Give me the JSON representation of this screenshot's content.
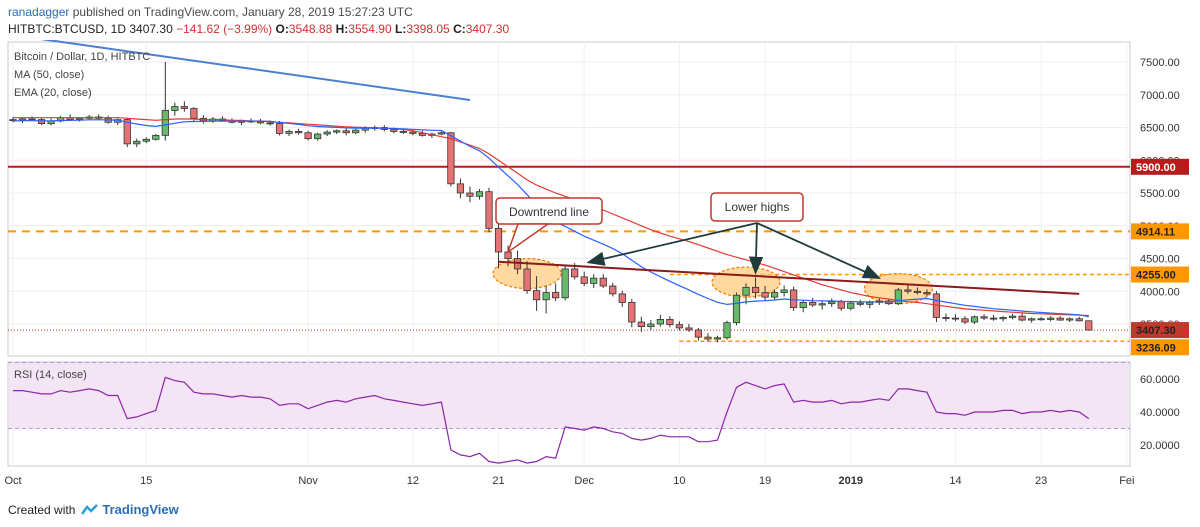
{
  "header": {
    "author": "ranadagger",
    "published_text": "published on TradingView.com, January 28, 2019 15:27:23 UTC",
    "symbol": "HITBTC:BTCUSD, 1D",
    "last_price": "3407.30",
    "change": "−141.62 (−3.99%)",
    "open_label": "O:",
    "open": "3548.88",
    "high_label": "H:",
    "high": "3554.90",
    "low_label": "L:",
    "low": "3398.05",
    "close_label": "C:",
    "close": "3407.30"
  },
  "legend": {
    "title": "Bitcoin / Dollar, 1D, HITBTC",
    "ma": "MA (50, close)",
    "ema": "EMA (20, close)",
    "rsi": "RSI (14, close)"
  },
  "footer": {
    "created_with": "Created with",
    "brand": "TradingView"
  },
  "colors": {
    "up": "#3a8e3a",
    "down": "#c0392b",
    "ma": "#e53935",
    "ema": "#2962ff",
    "level": "#b71c1c",
    "dashed": "#ff9800",
    "rsi": "#8e24aa",
    "rsi_band": "#f3e5f5"
  },
  "chart_data": {
    "type": "candlestick",
    "x_ticks": [
      "Oct",
      "15",
      "Nov",
      "12",
      "21",
      "Dec",
      "10",
      "19",
      "2019",
      "14",
      "23",
      "Fei"
    ],
    "y_ticks": [
      "7500.00",
      "7000.00",
      "6500.00",
      "6000.00",
      "5500.00",
      "5000.00",
      "4500.00",
      "4000.00",
      "3500.00"
    ],
    "price_labels": [
      "5900.00",
      "4914.11",
      "4255.00",
      "3407.30",
      "3236.09"
    ],
    "levels": {
      "horizontal_solid": 5900.0,
      "horizontal_dashed_1": 4914.11,
      "horizontal_dashed_2": 4255.0,
      "support_dashed": 3236.09,
      "last_price": 3407.3
    },
    "annotations": [
      {
        "text": "Downtrend line"
      },
      {
        "text": "Lower highs"
      }
    ],
    "rsi_ticks": [
      "60.0000",
      "40.0000",
      "20.0000"
    ],
    "rsi_band": [
      30,
      70
    ],
    "ohlc": [
      [
        6620,
        6660,
        6580,
        6610
      ],
      [
        6610,
        6650,
        6570,
        6630
      ],
      [
        6630,
        6670,
        6600,
        6620
      ],
      [
        6620,
        6650,
        6540,
        6560
      ],
      [
        6560,
        6640,
        6530,
        6600
      ],
      [
        6600,
        6680,
        6580,
        6650
      ],
      [
        6650,
        6700,
        6600,
        6620
      ],
      [
        6620,
        6660,
        6590,
        6640
      ],
      [
        6640,
        6690,
        6610,
        6660
      ],
      [
        6660,
        6700,
        6620,
        6640
      ],
      [
        6640,
        6680,
        6560,
        6580
      ],
      [
        6580,
        6640,
        6540,
        6620
      ],
      [
        6620,
        6650,
        6200,
        6250
      ],
      [
        6250,
        6330,
        6200,
        6290
      ],
      [
        6290,
        6350,
        6260,
        6320
      ],
      [
        6320,
        6400,
        6300,
        6380
      ],
      [
        6380,
        7500,
        6300,
        6760
      ],
      [
        6760,
        6880,
        6680,
        6820
      ],
      [
        6820,
        6900,
        6740,
        6790
      ],
      [
        6790,
        6810,
        6600,
        6640
      ],
      [
        6640,
        6690,
        6560,
        6600
      ],
      [
        6600,
        6660,
        6570,
        6630
      ],
      [
        6630,
        6670,
        6590,
        6610
      ],
      [
        6610,
        6640,
        6560,
        6580
      ],
      [
        6580,
        6620,
        6540,
        6600
      ],
      [
        6600,
        6640,
        6570,
        6590
      ],
      [
        6590,
        6630,
        6550,
        6570
      ],
      [
        6570,
        6610,
        6530,
        6560
      ],
      [
        6560,
        6600,
        6380,
        6410
      ],
      [
        6410,
        6470,
        6370,
        6440
      ],
      [
        6440,
        6480,
        6390,
        6420
      ],
      [
        6420,
        6450,
        6300,
        6330
      ],
      [
        6330,
        6420,
        6300,
        6400
      ],
      [
        6400,
        6460,
        6370,
        6430
      ],
      [
        6430,
        6470,
        6400,
        6450
      ],
      [
        6450,
        6490,
        6380,
        6420
      ],
      [
        6420,
        6480,
        6400,
        6460
      ],
      [
        6460,
        6520,
        6420,
        6490
      ],
      [
        6490,
        6530,
        6450,
        6500
      ],
      [
        6500,
        6540,
        6440,
        6470
      ],
      [
        6470,
        6500,
        6410,
        6440
      ],
      [
        6440,
        6480,
        6400,
        6430
      ],
      [
        6430,
        6470,
        6380,
        6410
      ],
      [
        6410,
        6450,
        6360,
        6380
      ],
      [
        6380,
        6420,
        6340,
        6400
      ],
      [
        6400,
        6440,
        6380,
        6420
      ],
      [
        6420,
        6430,
        5600,
        5640
      ],
      [
        5640,
        5720,
        5420,
        5500
      ],
      [
        5500,
        5600,
        5360,
        5450
      ],
      [
        5450,
        5560,
        5400,
        5520
      ],
      [
        5520,
        5580,
        4900,
        4960
      ],
      [
        4960,
        5050,
        4350,
        4600
      ],
      [
        4600,
        4700,
        4380,
        4500
      ],
      [
        4500,
        4620,
        4260,
        4340
      ],
      [
        4340,
        4460,
        3960,
        4010
      ],
      [
        4010,
        4230,
        3700,
        3870
      ],
      [
        3870,
        4090,
        3660,
        3980
      ],
      [
        3980,
        4120,
        3850,
        3900
      ],
      [
        3900,
        4400,
        3860,
        4340
      ],
      [
        4340,
        4430,
        4180,
        4220
      ],
      [
        4220,
        4300,
        4080,
        4120
      ],
      [
        4120,
        4260,
        4050,
        4200
      ],
      [
        4200,
        4260,
        4050,
        4080
      ],
      [
        4080,
        4130,
        3920,
        3960
      ],
      [
        3960,
        4010,
        3760,
        3830
      ],
      [
        3830,
        3880,
        3450,
        3530
      ],
      [
        3530,
        3610,
        3380,
        3460
      ],
      [
        3460,
        3560,
        3410,
        3500
      ],
      [
        3500,
        3640,
        3460,
        3570
      ],
      [
        3570,
        3620,
        3450,
        3490
      ],
      [
        3490,
        3540,
        3400,
        3440
      ],
      [
        3440,
        3500,
        3380,
        3410
      ],
      [
        3410,
        3440,
        3250,
        3300
      ],
      [
        3300,
        3360,
        3230,
        3270
      ],
      [
        3270,
        3320,
        3220,
        3290
      ],
      [
        3290,
        3550,
        3260,
        3520
      ],
      [
        3520,
        3980,
        3480,
        3940
      ],
      [
        3940,
        4120,
        3800,
        4060
      ],
      [
        4060,
        4210,
        3890,
        3980
      ],
      [
        3980,
        4080,
        3860,
        3910
      ],
      [
        3910,
        4030,
        3860,
        3980
      ],
      [
        3980,
        4090,
        3920,
        4020
      ],
      [
        4020,
        4070,
        3700,
        3750
      ],
      [
        3750,
        3870,
        3680,
        3830
      ],
      [
        3830,
        3900,
        3760,
        3790
      ],
      [
        3790,
        3860,
        3720,
        3810
      ],
      [
        3810,
        3890,
        3760,
        3840
      ],
      [
        3840,
        3870,
        3700,
        3740
      ],
      [
        3740,
        3840,
        3710,
        3820
      ],
      [
        3820,
        3870,
        3770,
        3800
      ],
      [
        3800,
        3860,
        3740,
        3830
      ],
      [
        3830,
        3900,
        3790,
        3850
      ],
      [
        3850,
        3880,
        3790,
        3810
      ],
      [
        3810,
        4050,
        3790,
        4020
      ],
      [
        4020,
        4100,
        3960,
        4000
      ],
      [
        4000,
        4060,
        3950,
        3980
      ],
      [
        3980,
        4030,
        3920,
        3960
      ],
      [
        3960,
        4000,
        3530,
        3600
      ],
      [
        3600,
        3660,
        3540,
        3590
      ],
      [
        3590,
        3650,
        3540,
        3580
      ],
      [
        3580,
        3620,
        3500,
        3530
      ],
      [
        3530,
        3630,
        3500,
        3610
      ],
      [
        3610,
        3650,
        3560,
        3590
      ],
      [
        3590,
        3640,
        3550,
        3580
      ],
      [
        3580,
        3620,
        3540,
        3600
      ],
      [
        3600,
        3660,
        3570,
        3620
      ],
      [
        3620,
        3660,
        3540,
        3560
      ],
      [
        3560,
        3600,
        3520,
        3580
      ],
      [
        3580,
        3610,
        3550,
        3570
      ],
      [
        3570,
        3620,
        3540,
        3590
      ],
      [
        3590,
        3620,
        3550,
        3560
      ],
      [
        3560,
        3600,
        3530,
        3580
      ],
      [
        3580,
        3610,
        3540,
        3549
      ],
      [
        3548.88,
        3554.9,
        3398.05,
        3407.3
      ]
    ],
    "rsi": [
      53,
      53,
      52,
      51,
      51,
      53,
      52,
      53,
      54,
      53,
      50,
      50,
      36,
      37,
      39,
      41,
      61,
      59,
      58,
      52,
      51,
      51,
      50,
      49,
      50,
      49,
      49,
      48,
      44,
      45,
      45,
      42,
      44,
      46,
      47,
      46,
      48,
      49,
      50,
      48,
      47,
      46,
      45,
      44,
      45,
      46,
      17,
      14,
      13,
      15,
      10,
      9,
      10,
      11,
      9,
      10,
      13,
      12,
      31,
      30,
      29,
      31,
      30,
      28,
      27,
      24,
      23,
      24,
      26,
      25,
      25,
      25,
      22,
      22,
      23,
      40,
      55,
      58,
      56,
      54,
      56,
      57,
      46,
      47,
      46,
      46,
      47,
      45,
      46,
      46,
      47,
      48,
      47,
      54,
      54,
      53,
      52,
      40,
      39,
      39,
      38,
      40,
      40,
      40,
      41,
      41,
      39,
      40,
      40,
      41,
      40,
      41,
      40,
      36
    ],
    "ema": [
      6600,
      6604,
      6606,
      6602,
      6602,
      6607,
      6609,
      6612,
      6617,
      6619,
      6615,
      6615,
      6580,
      6553,
      6531,
      6517,
      6540,
      6566,
      6587,
      6592,
      6593,
      6597,
      6598,
      6597,
      6598,
      6598,
      6596,
      6593,
      6576,
      6563,
      6548,
      6528,
      6516,
      6508,
      6502,
      6494,
      6491,
      6491,
      6491,
      6489,
      6484,
      6479,
      6472,
      6464,
      6458,
      6454,
      6375,
      6292,
      6212,
      6145,
      6032,
      5896,
      5763,
      5628,
      5474,
      5320,
      5183,
      5060,
      4990,
      4916,
      4841,
      4780,
      4718,
      4651,
      4573,
      4474,
      4377,
      4294,
      4222,
      4152,
      4084,
      4020,
      3952,
      3889,
      3831,
      3800,
      3814,
      3837,
      3850,
      3856,
      3867,
      3882,
      3870,
      3863,
      3856,
      3852,
      3851,
      3845,
      3843,
      3839,
      3838,
      3839,
      3837,
      3855,
      3869,
      3880,
      3888,
      3860,
      3834,
      3810,
      3786,
      3768,
      3750,
      3734,
      3721,
      3711,
      3697,
      3686,
      3675,
      3667,
      3657,
      3650,
      3640,
      3610
    ],
    "ma": [
      6650,
      6650,
      6650,
      6650,
      6650,
      6650,
      6650,
      6650,
      6650,
      6650,
      6650,
      6650,
      6640,
      6630,
      6620,
      6610,
      6620,
      6630,
      6630,
      6630,
      6620,
      6620,
      6620,
      6610,
      6610,
      6600,
      6600,
      6590,
      6580,
      6570,
      6560,
      6550,
      6540,
      6530,
      6520,
      6510,
      6505,
      6500,
      6495,
      6490,
      6480,
      6470,
      6450,
      6420,
      6390,
      6360,
      6330,
      6280,
      6230,
      6180,
      6100,
      6000,
      5900,
      5800,
      5700,
      5620,
      5560,
      5500,
      5450,
      5400,
      5340,
      5290,
      5240,
      5180,
      5120,
      5060,
      5000,
      4940,
      4890,
      4840,
      4800,
      4760,
      4710,
      4660,
      4610,
      4560,
      4520,
      4480,
      4440,
      4400,
      4350,
      4300,
      4250,
      4200,
      4150,
      4100,
      4060,
      4020,
      3980,
      3950,
      3920,
      3900,
      3880,
      3860,
      3840,
      3830,
      3810,
      3790,
      3770,
      3750,
      3730,
      3720,
      3710,
      3700,
      3690,
      3680,
      3670,
      3660,
      3655,
      3650,
      3645,
      3640,
      3635,
      3630
    ]
  }
}
